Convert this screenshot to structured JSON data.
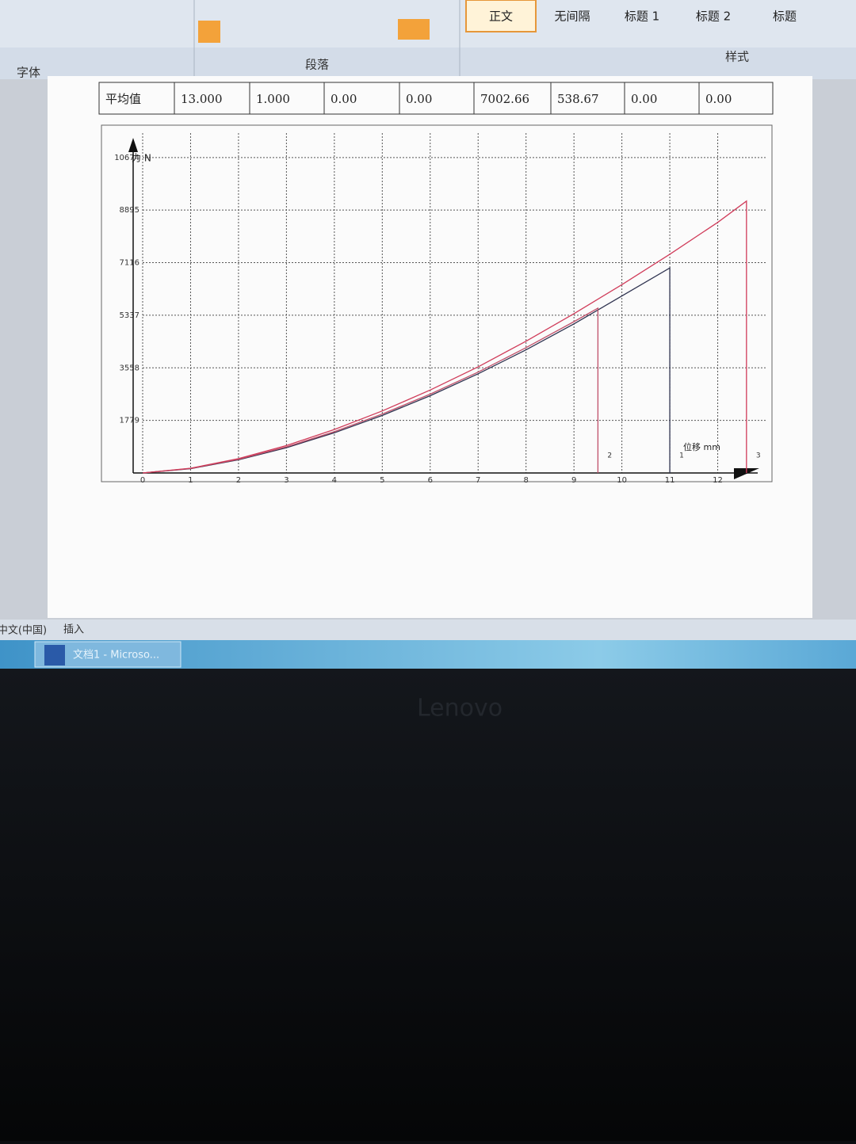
{
  "ribbon": {
    "groups": [
      "字体",
      "段落",
      "样式"
    ],
    "styles": [
      "正文",
      "无间隔",
      "标题 1",
      "标题 2",
      "标题"
    ]
  },
  "table": {
    "rows": [
      [
        "平均值",
        "13.000",
        "1.000",
        "0.00",
        "0.00",
        "7002.66",
        "538.67",
        "0.00",
        "0.00"
      ]
    ]
  },
  "chart_data": {
    "type": "line",
    "y_label": "力 N",
    "x_label": "位移 mm",
    "xlim": [
      0,
      13
    ],
    "xticks": [
      0,
      1,
      2,
      3,
      4,
      5,
      6,
      7,
      8,
      9,
      10,
      11,
      12
    ],
    "ylim": [
      0,
      11500
    ],
    "yticks": [
      1779,
      3558,
      5337,
      7116,
      8895,
      10674
    ],
    "grid": true,
    "series": [
      {
        "name": "1",
        "color": "#2f3350",
        "x": [
          0,
          1,
          2,
          3,
          4,
          5,
          6,
          7,
          8,
          9,
          10,
          11,
          11
        ],
        "values": [
          0,
          146,
          447,
          856,
          1359,
          1947,
          2614,
          3355,
          4166,
          5045,
          5988,
          6937,
          0
        ]
      },
      {
        "name": "2",
        "color": "#c0506a",
        "x": [
          0,
          1,
          2,
          3,
          4,
          5,
          6,
          7,
          8,
          9,
          9.5,
          9.5
        ],
        "values": [
          0,
          152,
          461,
          883,
          1397,
          1995,
          2668,
          3412,
          4241,
          5120,
          5577,
          0
        ]
      },
      {
        "name": "3",
        "color": "#d03c5a",
        "x": [
          0,
          1,
          2,
          3,
          4,
          5,
          6,
          7,
          8,
          9,
          10,
          11,
          12,
          12.6,
          12.6
        ],
        "values": [
          0,
          160,
          485,
          929,
          1470,
          2099,
          2806,
          3590,
          4459,
          5390,
          6371,
          7400,
          8480,
          9200,
          0
        ]
      }
    ]
  },
  "status_bar": [
    "中文(中国)",
    "插入"
  ],
  "taskbar": {
    "window": "文档1 - Microso..."
  },
  "monitor": {
    "brand": "Lenovo"
  }
}
